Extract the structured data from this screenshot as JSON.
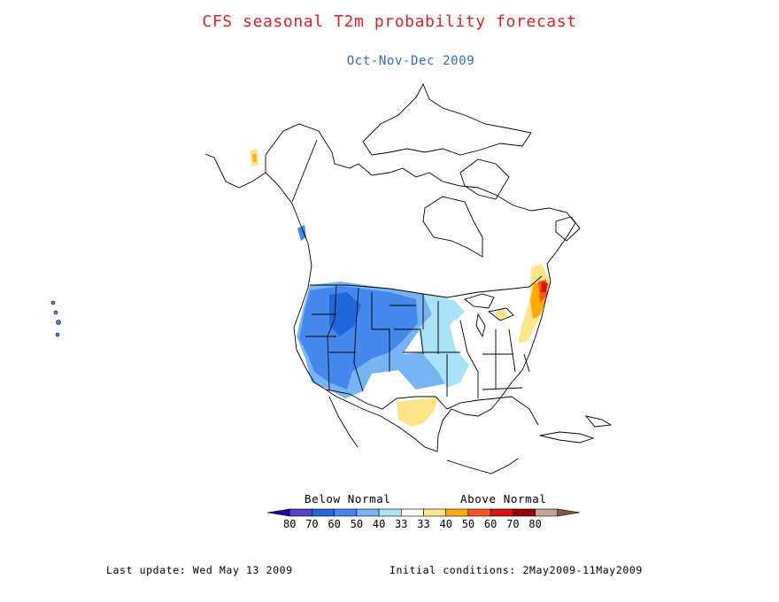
{
  "title": "CFS seasonal T2m probability forecast",
  "subtitle": "Oct-Nov-Dec 2009",
  "colors": {
    "title": "#dd2222",
    "subtitle": "#3366dd",
    "land_outline": "#000000",
    "below_normal": [
      "#2200aa",
      "#5544cc",
      "#2266dd",
      "#4488ee",
      "#77b4f4",
      "#aae2f8"
    ],
    "neutral": "#ffffff",
    "above_normal": [
      "#ffe58a",
      "#ffaa00",
      "#ff5522",
      "#dd1111",
      "#990000",
      "#c4a09a",
      "#885544"
    ]
  },
  "legend": {
    "below_label": "Below Normal",
    "above_label": "Above Normal",
    "ticks": [
      "80",
      "70",
      "60",
      "50",
      "40",
      "33",
      "33",
      "40",
      "50",
      "60",
      "70",
      "80"
    ]
  },
  "footer": {
    "last_update": "Last update: Wed May 13 2009",
    "initial_conditions": "Initial conditions: 2May2009-11May2009"
  }
}
